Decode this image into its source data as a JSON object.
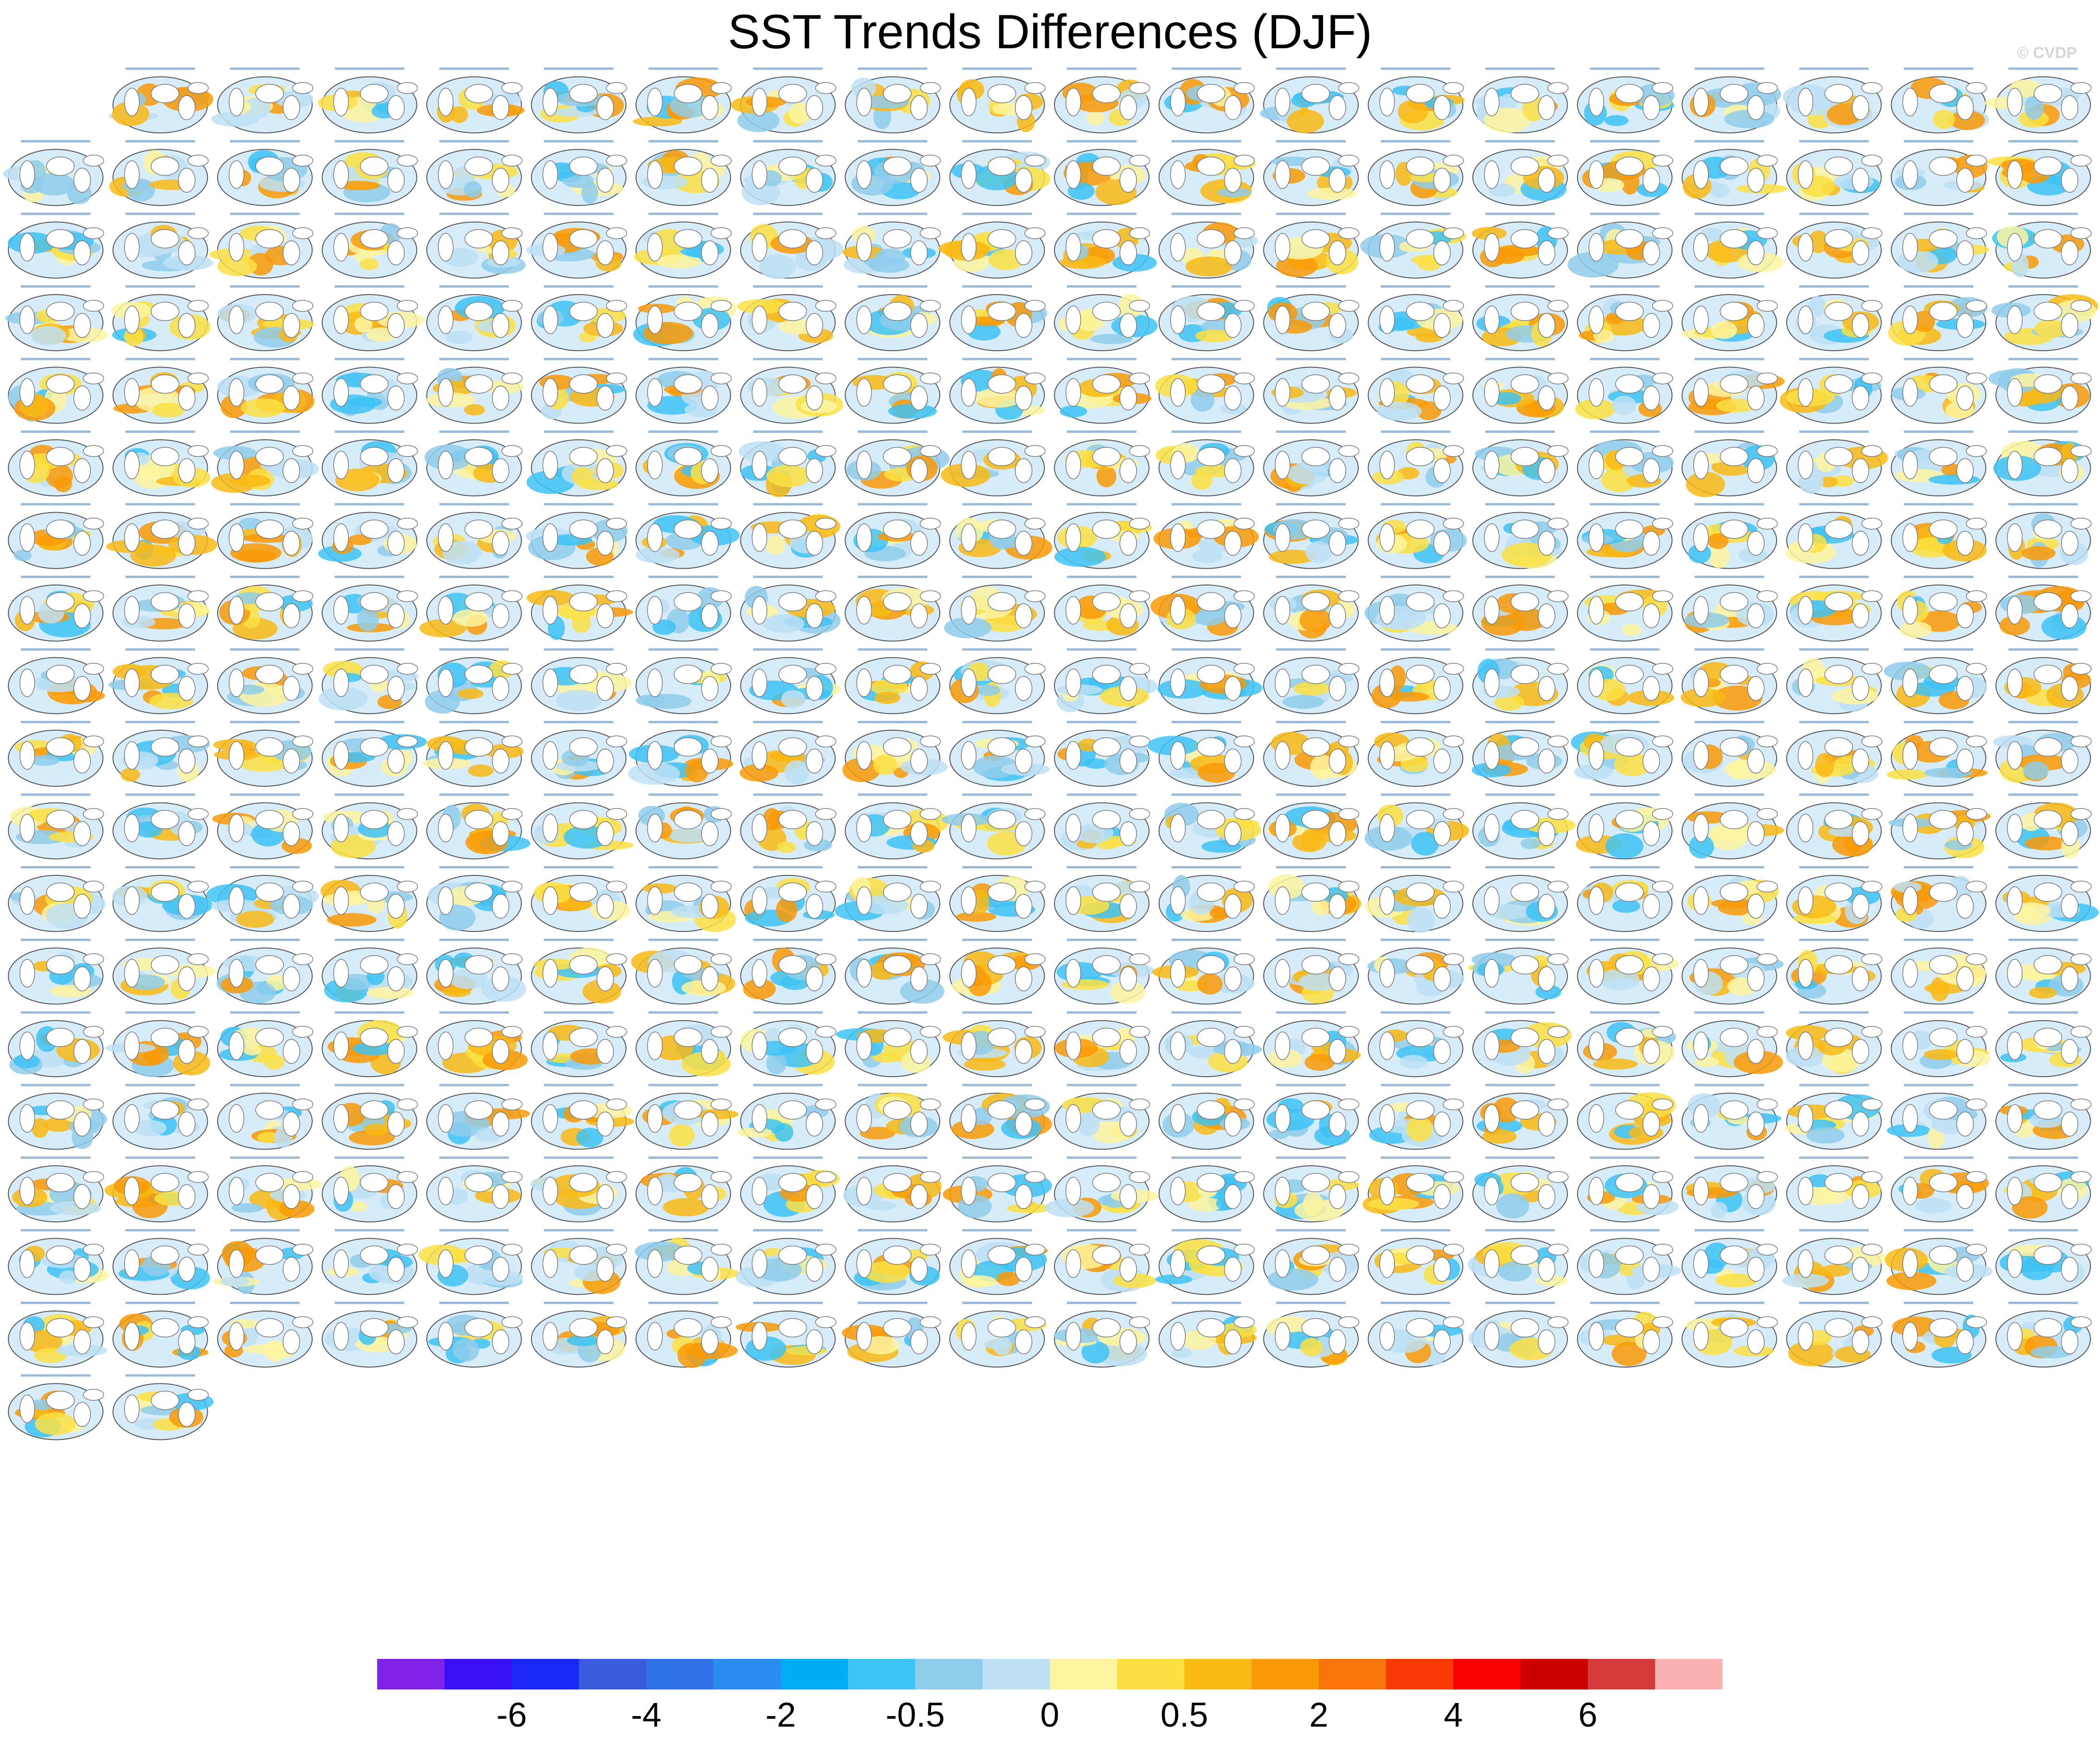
{
  "title": "SST Trends Differences (DJF)",
  "credit": "© CVDP",
  "chart_data": {
    "type": "heatmap",
    "title": "SST Trends Differences (DJF)",
    "panel_count": 361,
    "panel_layout": {
      "columns": 20,
      "rows": 19,
      "first_row_panels": 19,
      "last_row_panels": 1
    },
    "colorbar": {
      "levels": [
        -8,
        -7,
        -6,
        -5,
        -4,
        -3,
        -2,
        -1,
        -0.5,
        -0.2,
        0,
        0.2,
        0.5,
        1,
        2,
        3,
        4,
        5,
        6,
        7,
        8
      ],
      "colors": [
        "#8122e8",
        "#3b10f5",
        "#1a28f5",
        "#3a5cdc",
        "#2f70e6",
        "#2a8cf0",
        "#00adf5",
        "#3ec3f5",
        "#8fcdeb",
        "#bde0f5",
        "#fdf5a0",
        "#fbe042",
        "#f9ba14",
        "#f99a06",
        "#f97409",
        "#f93a04",
        "#f90000",
        "#cc0000",
        "#d43a3a",
        "#fbb1b1"
      ],
      "tick_labels": [
        "-6",
        "-4",
        "-2",
        "-0.5",
        "0",
        "0.5",
        "2",
        "4",
        "6"
      ],
      "tick_values": [
        -6,
        -4,
        -2,
        -0.5,
        0,
        0.5,
        2,
        4,
        6
      ]
    }
  }
}
